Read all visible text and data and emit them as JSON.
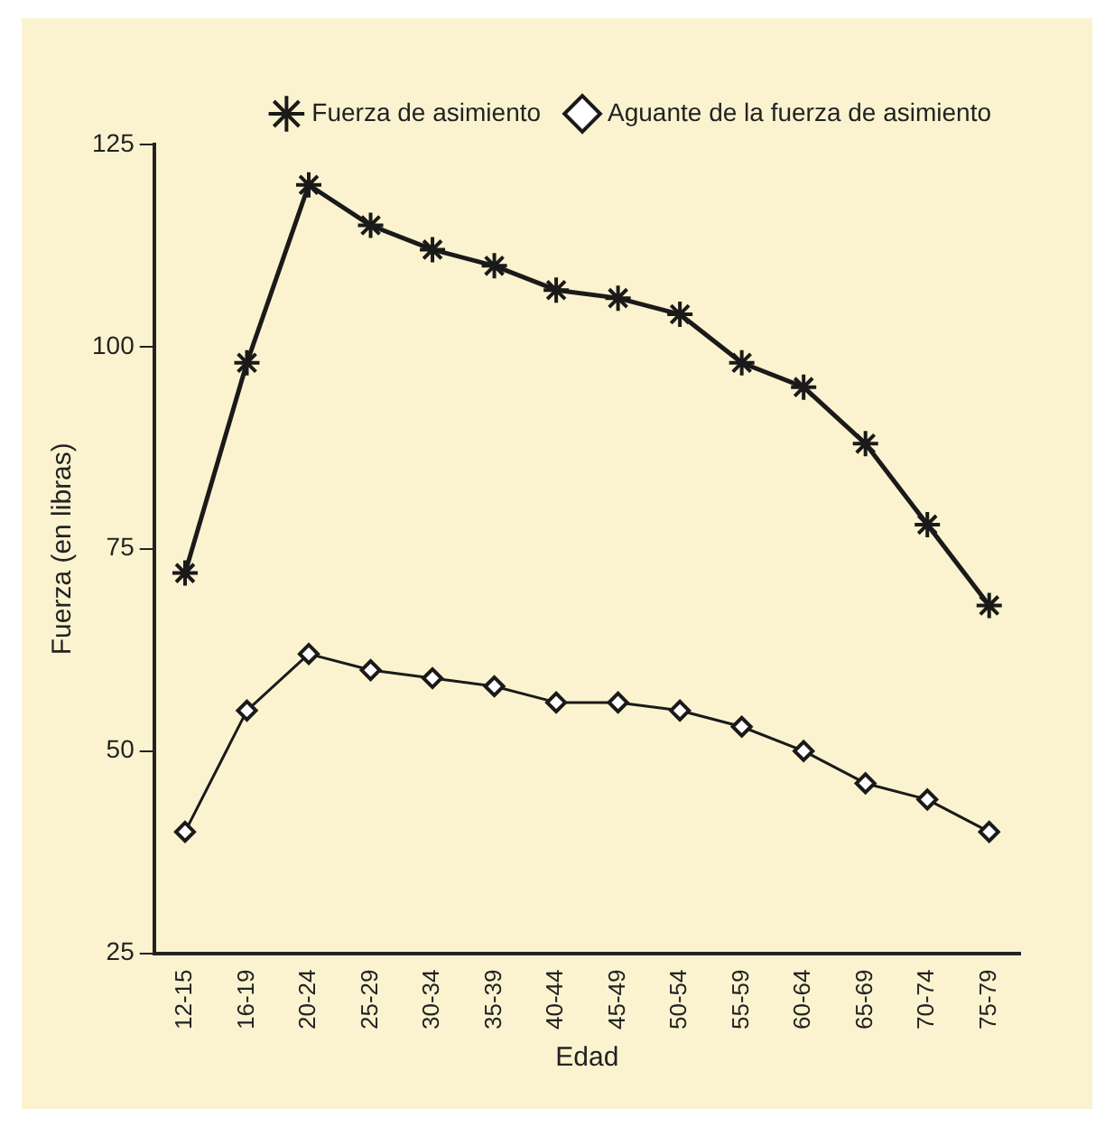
{
  "chart_data": {
    "type": "line",
    "xlabel": "Edad",
    "ylabel": "Fuerza (en libras)",
    "categories": [
      "12-15",
      "16-19",
      "20-24",
      "25-29",
      "30-34",
      "35-39",
      "40-44",
      "45-49",
      "50-54",
      "55-59",
      "60-64",
      "65-69",
      "70-74",
      "75-79"
    ],
    "series": [
      {
        "name": "Fuerza de asimiento",
        "color": "#1a1a1a",
        "marker": "cross",
        "values": [
          72,
          98,
          120,
          115,
          112,
          110,
          107,
          106,
          104,
          98,
          95,
          88,
          78,
          68
        ]
      },
      {
        "name": "Aguante de la fuerza de asimiento",
        "color": "#1a1a1a",
        "marker": "diamond",
        "values": [
          40,
          55,
          62,
          60,
          59,
          58,
          56,
          56,
          55,
          53,
          50,
          46,
          44,
          40
        ]
      }
    ],
    "ylim": [
      25,
      125
    ],
    "yticks": [
      25,
      50,
      75,
      100,
      125
    ],
    "grid": false,
    "legend": "top right",
    "line_style": "solid"
  }
}
